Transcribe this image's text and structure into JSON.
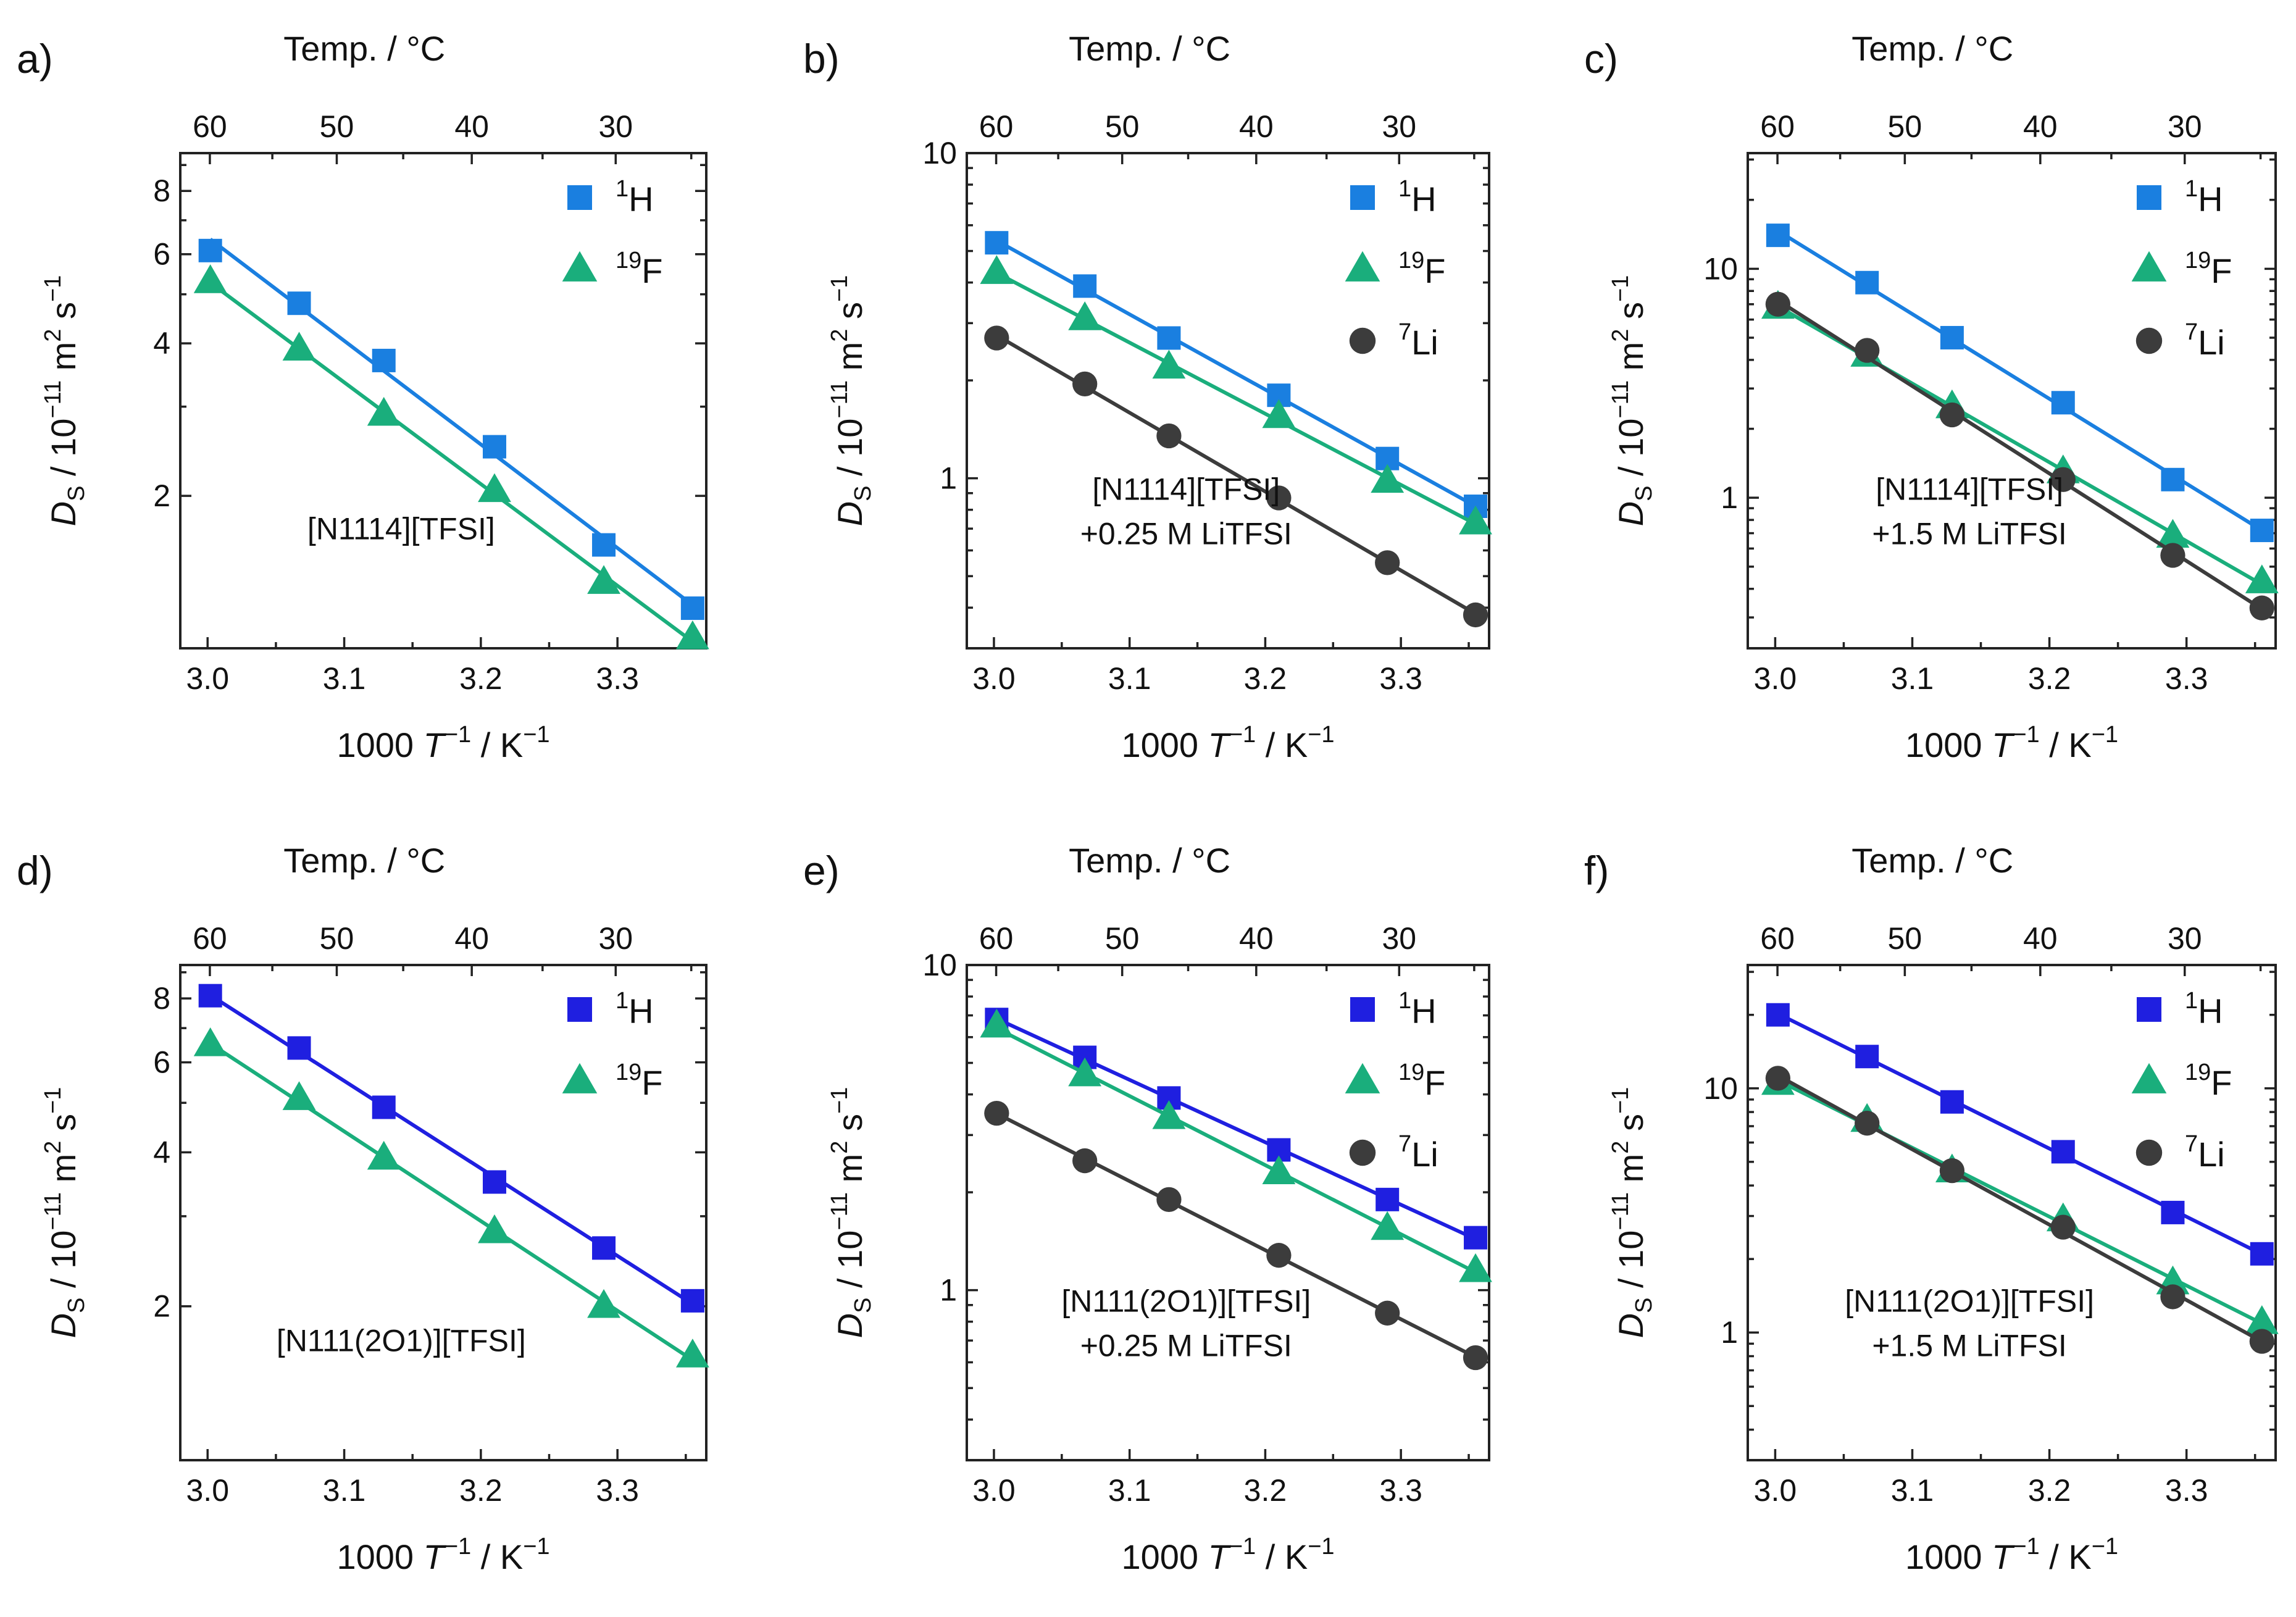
{
  "figure": {
    "axis_labels": {
      "top": "Temp. / °C",
      "bottom_prefix": "1000 ",
      "bottom_T": "T",
      "bottom_exp": "−1",
      "bottom_suffix": " / K",
      "bottom_exp2": "−1",
      "left_D": "D",
      "left_S": "S",
      "left_middle": " / 10",
      "left_exp1": "−11",
      "left_middle2": " m",
      "left_exp2": "2",
      "left_middle3": " s",
      "left_exp3": "−1"
    },
    "colors": {
      "H_blue_top": "#1a7fe0",
      "H_blue_bottom": "#1f1fe0",
      "F_green": "#1aae7c",
      "Li_grey": "#3c3c3c"
    }
  },
  "chart_data": [
    {
      "panel": "a)",
      "type": "scatter",
      "annotation": [
        "[N1114][TFSI]"
      ],
      "xlabel": "1000 T−1 / K−1",
      "top_xlabel": "Temp. / °C",
      "ylabel": "DS / 10−11 m2 s−1",
      "yscale": "log",
      "xlim": [
        2.98,
        3.365
      ],
      "ylim": [
        1.0,
        9.5
      ],
      "x_ticks": [
        "3.0",
        "3.1",
        "3.2",
        "3.3"
      ],
      "x_tick_values": [
        3.0,
        3.1,
        3.2,
        3.3
      ],
      "y_ticks": [
        "2",
        "4",
        "6",
        "8"
      ],
      "y_tick_values": [
        2,
        4,
        6,
        8
      ],
      "top_ticks": [
        "60",
        "50",
        "40",
        "30"
      ],
      "x": [
        3.002,
        3.067,
        3.129,
        3.21,
        3.29,
        3.355
      ],
      "series": [
        {
          "name": "1H",
          "mass": "1",
          "elem": "H",
          "marker": "square",
          "color": "#1a7fe0",
          "values": [
            6.1,
            4.8,
            3.7,
            2.5,
            1.6,
            1.2
          ]
        },
        {
          "name": "19F",
          "mass": "19",
          "elem": "F",
          "marker": "triangle",
          "color": "#1aae7c",
          "values": [
            5.3,
            3.9,
            2.9,
            2.05,
            1.35,
            1.05
          ]
        }
      ]
    },
    {
      "panel": "b)",
      "type": "scatter",
      "annotation": [
        "[N1114][TFSI]",
        "+0.25 M LiTFSI"
      ],
      "xlabel": "1000 T−1 / K−1",
      "top_xlabel": "Temp. / °C",
      "ylabel": "DS / 10−11 m2 s−1",
      "yscale": "log",
      "xlim": [
        2.98,
        3.365
      ],
      "ylim": [
        0.3,
        10
      ],
      "x_ticks": [
        "3.0",
        "3.1",
        "3.2",
        "3.3"
      ],
      "x_tick_values": [
        3.0,
        3.1,
        3.2,
        3.3
      ],
      "y_ticks": [
        "1",
        "10"
      ],
      "y_tick_values": [
        1,
        10
      ],
      "top_ticks": [
        "60",
        "50",
        "40",
        "30"
      ],
      "x": [
        3.002,
        3.067,
        3.129,
        3.21,
        3.29,
        3.355
      ],
      "series": [
        {
          "name": "1H",
          "mass": "1",
          "elem": "H",
          "marker": "square",
          "color": "#1a7fe0",
          "values": [
            5.3,
            3.9,
            2.7,
            1.8,
            1.15,
            0.82
          ]
        },
        {
          "name": "19F",
          "mass": "19",
          "elem": "F",
          "marker": "triangle",
          "color": "#1aae7c",
          "values": [
            4.3,
            3.1,
            2.2,
            1.55,
            0.98,
            0.73
          ]
        },
        {
          "name": "7Li",
          "mass": "7",
          "elem": "Li",
          "marker": "circle",
          "color": "#3c3c3c",
          "values": [
            2.7,
            1.95,
            1.35,
            0.87,
            0.55,
            0.38
          ]
        }
      ]
    },
    {
      "panel": "c)",
      "type": "scatter",
      "annotation": [
        "[N1114][TFSI]",
        "+1.5 M LiTFSI"
      ],
      "xlabel": "1000 T−1 / K−1",
      "top_xlabel": "Temp. / °C",
      "ylabel": "DS / 10−11 m2 s−1",
      "yscale": "log",
      "xlim": [
        2.98,
        3.365
      ],
      "ylim": [
        0.22,
        32
      ],
      "x_ticks": [
        "3.0",
        "3.1",
        "3.2",
        "3.3"
      ],
      "x_tick_values": [
        3.0,
        3.1,
        3.2,
        3.3
      ],
      "y_ticks": [
        "1",
        "10"
      ],
      "y_tick_values": [
        1,
        10
      ],
      "top_ticks": [
        "60",
        "50",
        "40",
        "30"
      ],
      "x": [
        3.002,
        3.067,
        3.129,
        3.21,
        3.29,
        3.355
      ],
      "series": [
        {
          "name": "1H",
          "mass": "1",
          "elem": "H",
          "marker": "square",
          "color": "#1a7fe0",
          "values": [
            14,
            8.7,
            5.0,
            2.6,
            1.2,
            0.72
          ]
        },
        {
          "name": "19F",
          "mass": "19",
          "elem": "F",
          "marker": "triangle",
          "color": "#1aae7c",
          "values": [
            6.8,
            4.2,
            2.5,
            1.3,
            0.68,
            0.43
          ]
        },
        {
          "name": "7Li",
          "mass": "7",
          "elem": "Li",
          "marker": "circle",
          "color": "#3c3c3c",
          "values": [
            7.0,
            4.4,
            2.3,
            1.2,
            0.56,
            0.33
          ]
        }
      ]
    },
    {
      "panel": "d)",
      "type": "scatter",
      "annotation": [
        "[N111(2O1)][TFSI]"
      ],
      "xlabel": "1000 T−1 / K−1",
      "top_xlabel": "Temp. / °C",
      "ylabel": "DS / 10−11 m2 s−1",
      "yscale": "log",
      "xlim": [
        2.98,
        3.365
      ],
      "ylim": [
        1.0,
        9.3
      ],
      "x_ticks": [
        "3.0",
        "3.1",
        "3.2",
        "3.3"
      ],
      "x_tick_values": [
        3.0,
        3.1,
        3.2,
        3.3
      ],
      "y_ticks": [
        "2",
        "4",
        "6",
        "8"
      ],
      "y_tick_values": [
        2,
        4,
        6,
        8
      ],
      "top_ticks": [
        "60",
        "50",
        "40",
        "30"
      ],
      "x": [
        3.002,
        3.067,
        3.129,
        3.21,
        3.29,
        3.355
      ],
      "series": [
        {
          "name": "1H",
          "mass": "1",
          "elem": "H",
          "marker": "square",
          "color": "#1f1fe0",
          "values": [
            8.1,
            6.4,
            4.9,
            3.5,
            2.6,
            2.05
          ]
        },
        {
          "name": "19F",
          "mass": "19",
          "elem": "F",
          "marker": "triangle",
          "color": "#1aae7c",
          "values": [
            6.5,
            5.1,
            3.9,
            2.8,
            2.0,
            1.6
          ]
        }
      ]
    },
    {
      "panel": "e)",
      "type": "scatter",
      "annotation": [
        "[N111(2O1)][TFSI]",
        "+0.25 M LiTFSI"
      ],
      "xlabel": "1000 T−1 / K−1",
      "top_xlabel": "Temp. / °C",
      "ylabel": "DS / 10−11 m2 s−1",
      "yscale": "log",
      "xlim": [
        2.98,
        3.365
      ],
      "ylim": [
        0.3,
        10
      ],
      "x_ticks": [
        "3.0",
        "3.1",
        "3.2",
        "3.3"
      ],
      "x_tick_values": [
        3.0,
        3.1,
        3.2,
        3.3
      ],
      "y_ticks": [
        "1",
        "10"
      ],
      "y_tick_values": [
        1,
        10
      ],
      "top_ticks": [
        "60",
        "50",
        "40",
        "30"
      ],
      "x": [
        3.002,
        3.067,
        3.129,
        3.21,
        3.29,
        3.355
      ],
      "series": [
        {
          "name": "1H",
          "mass": "1",
          "elem": "H",
          "marker": "square",
          "color": "#1f1fe0",
          "values": [
            6.8,
            5.2,
            3.9,
            2.7,
            1.9,
            1.45
          ]
        },
        {
          "name": "19F",
          "mass": "19",
          "elem": "F",
          "marker": "triangle",
          "color": "#1aae7c",
          "values": [
            6.5,
            4.6,
            3.4,
            2.3,
            1.55,
            1.15
          ]
        },
        {
          "name": "7Li",
          "mass": "7",
          "elem": "Li",
          "marker": "circle",
          "color": "#3c3c3c",
          "values": [
            3.5,
            2.5,
            1.9,
            1.28,
            0.85,
            0.62
          ]
        }
      ]
    },
    {
      "panel": "f)",
      "type": "scatter",
      "annotation": [
        "[N111(2O1)][TFSI]",
        "+1.5 M LiTFSI"
      ],
      "xlabel": "1000 T−1 / K−1",
      "top_xlabel": "Temp. / °C",
      "ylabel": "DS / 10−11 m2 s−1",
      "yscale": "log",
      "xlim": [
        2.98,
        3.365
      ],
      "ylim": [
        0.3,
        32
      ],
      "x_ticks": [
        "3.0",
        "3.1",
        "3.2",
        "3.3"
      ],
      "x_tick_values": [
        3.0,
        3.1,
        3.2,
        3.3
      ],
      "y_ticks": [
        "1",
        "10"
      ],
      "y_tick_values": [
        1,
        10
      ],
      "top_ticks": [
        "60",
        "50",
        "40",
        "30"
      ],
      "x": [
        3.002,
        3.067,
        3.129,
        3.21,
        3.29,
        3.355
      ],
      "series": [
        {
          "name": "1H",
          "mass": "1",
          "elem": "H",
          "marker": "square",
          "color": "#1f1fe0",
          "values": [
            20,
            13.5,
            8.8,
            5.5,
            3.1,
            2.1
          ]
        },
        {
          "name": "19F",
          "mass": "19",
          "elem": "F",
          "marker": "triangle",
          "color": "#1aae7c",
          "values": [
            10.5,
            7.4,
            4.6,
            2.9,
            1.6,
            1.1
          ]
        },
        {
          "name": "7Li",
          "mass": "7",
          "elem": "Li",
          "marker": "circle",
          "color": "#3c3c3c",
          "values": [
            11,
            7.2,
            4.6,
            2.7,
            1.4,
            0.92
          ]
        }
      ]
    }
  ]
}
